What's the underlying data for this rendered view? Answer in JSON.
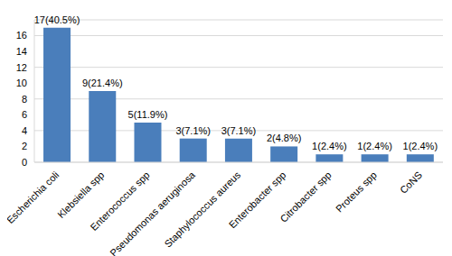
{
  "chart_data": {
    "type": "bar",
    "categories": [
      "Escherichia coli",
      "Klebsiella spp",
      "Enterococcus spp",
      "Pseudomonas aeruginosa",
      "Staphylococcus aureus",
      "Enterobacter spp",
      "Citrobacter spp",
      "Proteus spp",
      "CoNS"
    ],
    "values": [
      17,
      9,
      5,
      3,
      3,
      2,
      1,
      1,
      1
    ],
    "value_labels": [
      "17(40.5%)",
      "9(21.4%)",
      "5(11.9%)",
      "3(7.1%)",
      "3(7.1%)",
      "2(4.8%)",
      "1(2.4%)",
      "1(2.4%)",
      "1(2.4%)"
    ],
    "color": "#4a7ebb",
    "ylim": [
      0,
      18
    ],
    "yticks": [
      0,
      2,
      4,
      6,
      8,
      10,
      12,
      14,
      16
    ],
    "grid": true,
    "data_labels": true
  }
}
